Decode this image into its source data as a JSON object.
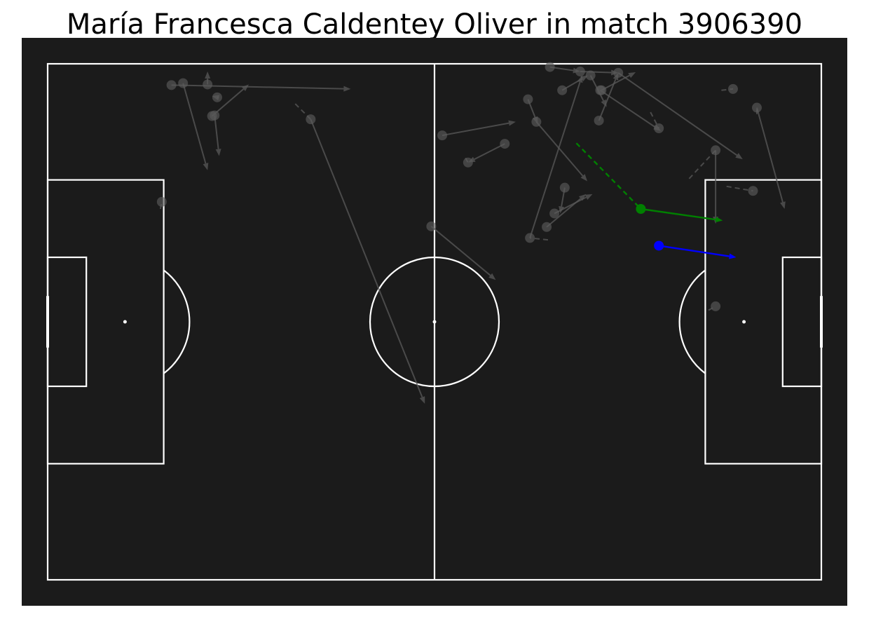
{
  "chart_data": {
    "type": "scatter",
    "subtype": "football-pitch-event-map",
    "title": "María Francesca Caldentey Oliver in match 3906390",
    "pitch": {
      "length": 120,
      "width": 80,
      "background": "#1b1b1b",
      "line_color": "#ffffff"
    },
    "colors": {
      "faded": "#5a5a5a",
      "highlight_1": "#008000",
      "highlight_2": "#0000ff"
    },
    "events": [
      {
        "start": [
          19.2,
          3.3
        ],
        "end": [
          47.0,
          3.9
        ],
        "carry": [
          19.2,
          3.3
        ],
        "style": "faded"
      },
      {
        "start": [
          21.0,
          3.0
        ],
        "end": [
          24.8,
          16.5
        ],
        "carry": [
          21.0,
          3.0
        ],
        "style": "faded"
      },
      {
        "start": [
          24.8,
          3.2
        ],
        "end": [
          24.8,
          1.2
        ],
        "carry": [
          24.8,
          3.2
        ],
        "style": "faded"
      },
      {
        "start": [
          26.3,
          5.2
        ],
        "end": [
          25.5,
          5.0
        ],
        "carry": [
          26.3,
          5.2
        ],
        "style": "faded"
      },
      {
        "start": [
          25.9,
          8.0
        ],
        "end": [
          26.6,
          14.3
        ],
        "carry": [
          25.9,
          8.0
        ],
        "style": "faded"
      },
      {
        "start": [
          25.5,
          8.1
        ],
        "end": [
          31.2,
          3.2
        ],
        "carry": [
          25.5,
          8.1
        ],
        "style": "faded"
      },
      {
        "start": [
          40.8,
          8.6
        ],
        "end": [
          58.5,
          52.7
        ],
        "carry": [
          38.4,
          6.2
        ],
        "style": "faded"
      },
      {
        "start": [
          17.7,
          21.4
        ],
        "end": [
          17.7,
          21.4
        ],
        "carry": [
          17.5,
          22.5
        ],
        "style": "faded"
      },
      {
        "start": [
          59.5,
          25.2
        ],
        "end": [
          69.5,
          33.5
        ],
        "carry": [
          59.5,
          25.2
        ],
        "style": "faded"
      },
      {
        "start": [
          61.2,
          11.1
        ],
        "end": [
          72.6,
          9.0
        ],
        "carry": [
          61.2,
          11.1
        ],
        "style": "faded"
      },
      {
        "start": [
          65.2,
          15.3
        ],
        "end": [
          65.2,
          15.3
        ],
        "carry": [
          64.8,
          14.6
        ],
        "style": "faded"
      },
      {
        "start": [
          70.9,
          12.4
        ],
        "end": [
          65.2,
          15.3
        ],
        "carry": [
          70.9,
          12.4
        ],
        "style": "faded"
      },
      {
        "start": [
          74.8,
          27.0
        ],
        "end": [
          82.9,
          1.8
        ],
        "carry": [
          77.6,
          27.3
        ],
        "style": "faded"
      },
      {
        "start": [
          74.5,
          5.5
        ],
        "end": [
          76.0,
          9.3
        ],
        "carry": [
          74.5,
          5.5
        ],
        "style": "faded"
      },
      {
        "start": [
          75.8,
          9.0
        ],
        "end": [
          83.7,
          18.2
        ],
        "carry": [
          75.8,
          9.0
        ],
        "style": "faded"
      },
      {
        "start": [
          77.4,
          25.3
        ],
        "end": [
          83.5,
          20.2
        ],
        "carry": [
          77.4,
          25.3
        ],
        "style": "faded"
      },
      {
        "start": [
          80.2,
          19.2
        ],
        "end": [
          79.5,
          23.2
        ],
        "carry": [
          80.2,
          19.2
        ],
        "style": "faded"
      },
      {
        "start": [
          78.6,
          23.2
        ],
        "end": [
          84.5,
          20.2
        ],
        "carry": [
          78.6,
          23.2
        ],
        "style": "faded"
      },
      {
        "start": [
          77.9,
          0.5
        ],
        "end": [
          82.6,
          1.2
        ],
        "carry": [
          77.9,
          0.5
        ],
        "style": "faded"
      },
      {
        "start": [
          82.6,
          1.2
        ],
        "end": [
          88.5,
          1.4
        ],
        "carry": [
          82.6,
          1.2
        ],
        "style": "faded"
      },
      {
        "start": [
          79.8,
          4.1
        ],
        "end": [
          83.8,
          1.8
        ],
        "carry": [
          79.8,
          4.1
        ],
        "style": "faded"
      },
      {
        "start": [
          84.2,
          1.8
        ],
        "end": [
          86.7,
          6.7
        ],
        "carry": [
          84.2,
          1.8
        ],
        "style": "faded"
      },
      {
        "start": [
          85.9,
          4.1
        ],
        "end": [
          91.2,
          1.3
        ],
        "carry": [
          85.9,
          4.1
        ],
        "style": "faded"
      },
      {
        "start": [
          85.5,
          8.8
        ],
        "end": [
          88.5,
          1.4
        ],
        "carry": [
          85.5,
          8.8
        ],
        "style": "faded"
      },
      {
        "start": [
          85.7,
          4.1
        ],
        "end": [
          95.1,
          10.4
        ],
        "carry": [
          85.7,
          4.1
        ],
        "style": "faded"
      },
      {
        "start": [
          88.5,
          1.4
        ],
        "end": [
          107.8,
          14.8
        ],
        "carry": [
          88.5,
          1.4
        ],
        "style": "faded"
      },
      {
        "start": [
          94.8,
          10.0
        ],
        "end": [
          94.8,
          10.0
        ],
        "carry": [
          93.5,
          7.5
        ],
        "style": "faded"
      },
      {
        "start": [
          103.6,
          13.4
        ],
        "end": [
          103.6,
          24.8
        ],
        "carry": [
          99.5,
          17.8
        ],
        "style": "faded"
      },
      {
        "start": [
          106.3,
          3.9
        ],
        "end": [
          106.3,
          3.9
        ],
        "carry": [
          104.5,
          4.1
        ],
        "style": "faded"
      },
      {
        "start": [
          110.0,
          6.8
        ],
        "end": [
          114.3,
          22.5
        ],
        "carry": [
          110.0,
          7.8
        ],
        "style": "faded"
      },
      {
        "start": [
          109.4,
          19.7
        ],
        "end": [
          109.4,
          19.7
        ],
        "carry": [
          105.3,
          19.0
        ],
        "style": "faded"
      },
      {
        "start": [
          103.6,
          37.6
        ],
        "end": [
          103.6,
          37.6
        ],
        "carry": [
          102.5,
          38.2
        ],
        "style": "faded"
      },
      {
        "start": [
          92.0,
          22.5
        ],
        "end": [
          104.7,
          24.3
        ],
        "carry": [
          82.0,
          12.3
        ],
        "style": "highlight_1"
      },
      {
        "start": [
          94.8,
          28.2
        ],
        "end": [
          106.8,
          30.0
        ],
        "carry": [
          94.8,
          28.2
        ],
        "style": "highlight_2"
      }
    ]
  }
}
